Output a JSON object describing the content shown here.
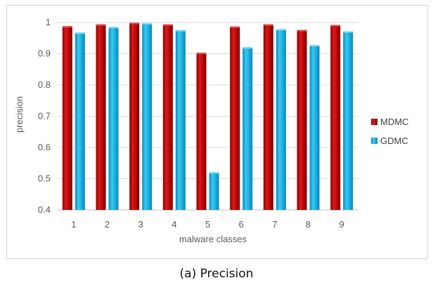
{
  "caption": "(a) Precision",
  "colors": {
    "MDMC": "#c00000",
    "GDMC": "#1ab0e0"
  },
  "chart_data": {
    "type": "bar",
    "title": "",
    "xlabel": "malware classes",
    "ylabel": "precision",
    "categories": [
      "1",
      "2",
      "3",
      "4",
      "5",
      "6",
      "7",
      "8",
      "9"
    ],
    "ylim": [
      0.4,
      1
    ],
    "yticks": [
      "0.4",
      "0.5",
      "0.6",
      "0.7",
      "0.8",
      "0.9",
      "1"
    ],
    "grid": true,
    "legend_position": "right",
    "series": [
      {
        "name": "MDMC",
        "values": [
          0.988,
          0.994,
          0.999,
          0.994,
          0.903,
          0.987,
          0.994,
          0.976,
          0.992
        ]
      },
      {
        "name": "GDMC",
        "values": [
          0.968,
          0.986,
          0.998,
          0.976,
          0.521,
          0.921,
          0.979,
          0.928,
          0.972
        ]
      }
    ]
  }
}
